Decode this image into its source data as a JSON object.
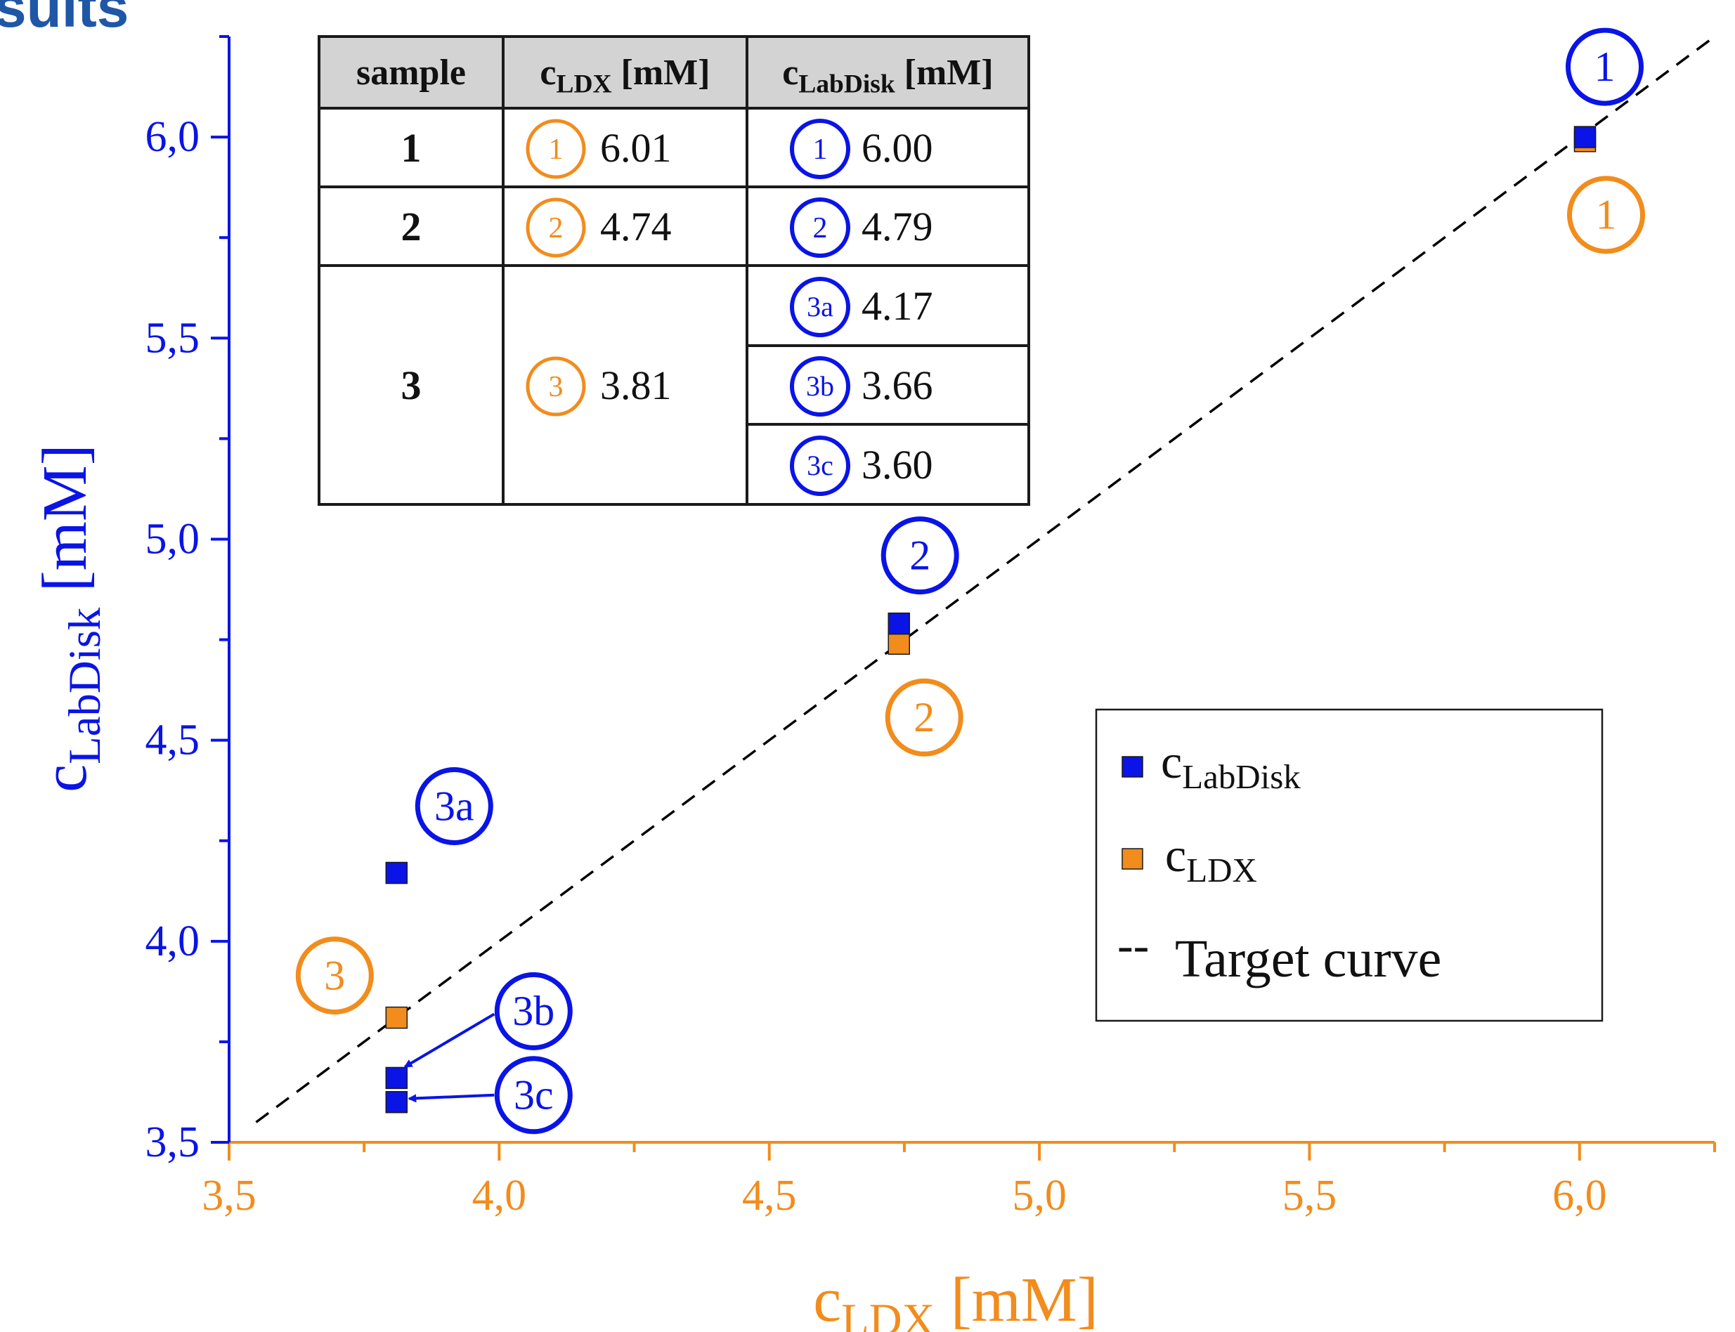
{
  "header": {
    "title_fragment": "sults",
    "title_color": "#1f57a6"
  },
  "chart_data": {
    "type": "scatter",
    "xlabel": "c_LDX [mM]",
    "xlabel_main": "c",
    "xlabel_sub": "LDX",
    "xlabel_unit": "[mM]",
    "ylabel": "c_LabDisk [mM]",
    "ylabel_main": "c",
    "ylabel_sub": "LabDisk",
    "ylabel_unit": "[mM]",
    "xlim": [
      3.5,
      6.25
    ],
    "ylim": [
      3.5,
      6.25
    ],
    "x_ticks": [
      3.5,
      4.0,
      4.5,
      5.0,
      5.5,
      6.0
    ],
    "x_tick_labels": [
      "3,5",
      "4,0",
      "4,5",
      "5,0",
      "5,5",
      "6,0"
    ],
    "y_ticks": [
      3.5,
      4.0,
      4.5,
      5.0,
      5.5,
      6.0
    ],
    "y_tick_labels": [
      "3,5",
      "4,0",
      "4,5",
      "5,0",
      "5,5",
      "6,0"
    ],
    "x_axis_color": "#f28c1c",
    "y_axis_color": "#0a14e6",
    "grid": false,
    "legend_position": "bottom-right",
    "series": [
      {
        "name": "c_LabDisk",
        "name_main": "c",
        "name_sub": "LabDisk",
        "color": "#0a14e6",
        "marker": "square",
        "points": [
          {
            "x": 6.01,
            "y": 6.0,
            "label": "1",
            "label_side": "above"
          },
          {
            "x": 4.74,
            "y": 4.79,
            "label": "2",
            "label_side": "above"
          },
          {
            "x": 3.81,
            "y": 4.17,
            "label": "3a",
            "label_side": "above-right"
          },
          {
            "x": 3.81,
            "y": 3.66,
            "label": "3b",
            "label_side": "arrow"
          },
          {
            "x": 3.81,
            "y": 3.6,
            "label": "3c",
            "label_side": "arrow"
          }
        ]
      },
      {
        "name": "c_LDX",
        "name_main": "c",
        "name_sub": "LDX",
        "color": "#f28c1c",
        "marker": "square",
        "points": [
          {
            "x": 6.01,
            "y": 5.99,
            "label": "1",
            "label_side": "below"
          },
          {
            "x": 4.74,
            "y": 4.74,
            "label": "2",
            "label_side": "below"
          },
          {
            "x": 3.81,
            "y": 3.81,
            "label": "3",
            "label_side": "left"
          }
        ]
      }
    ],
    "reference_line": {
      "name": "Target curve",
      "legend_symbol": "--",
      "from": [
        3.55,
        3.55
      ],
      "to": [
        6.25,
        6.25
      ],
      "style": "dashed",
      "color": "#000000"
    }
  },
  "table": {
    "headers": [
      {
        "main": "sample",
        "sub": "",
        "unit": ""
      },
      {
        "main": "c",
        "sub": "LDX",
        "unit": " [mM]"
      },
      {
        "main": "c",
        "sub": "LabDisk",
        "unit": " [mM]"
      }
    ],
    "rows": [
      {
        "sample": "1",
        "ldx_tag": "1",
        "ldx_value": "6.01",
        "labdisk": [
          {
            "tag": "1",
            "value": "6.00"
          }
        ]
      },
      {
        "sample": "2",
        "ldx_tag": "2",
        "ldx_value": "4.74",
        "labdisk": [
          {
            "tag": "2",
            "value": "4.79"
          }
        ]
      },
      {
        "sample": "3",
        "ldx_tag": "3",
        "ldx_value": "3.81",
        "labdisk": [
          {
            "tag": "3a",
            "value": "4.17"
          },
          {
            "tag": "3b",
            "value": "3.66"
          },
          {
            "tag": "3c",
            "value": "3.60"
          }
        ]
      }
    ]
  }
}
